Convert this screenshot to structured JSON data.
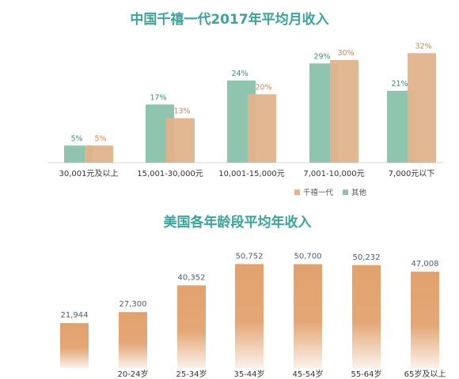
{
  "colors": {
    "millennial": "#e0b48c",
    "other": "#8fc4ae",
    "title": "#3aa59a",
    "axis_text": "#333333",
    "us_bar": "#e2a26e",
    "us_label": "#4a6070"
  },
  "chart_data": [
    {
      "type": "bar",
      "title": "中国千禧一代2017年平均月收入",
      "categories": [
        "30,001元及以上",
        "15,001-30,000元",
        "10,001-15,000元",
        "7,001-10,000元",
        "7,000元以下"
      ],
      "series": [
        {
          "name": "千禧一代",
          "values": [
            5,
            13,
            20,
            30,
            32
          ],
          "labels": [
            "5%",
            "13%",
            "20%",
            "30%",
            "32%"
          ]
        },
        {
          "name": "其他",
          "values": [
            5,
            17,
            24,
            29,
            21
          ],
          "labels": [
            "5%",
            "17%",
            "24%",
            "29%",
            "21%"
          ]
        }
      ],
      "ylim": [
        0,
        36
      ],
      "legend": "bottom-right",
      "grid": false
    },
    {
      "type": "bar",
      "title": "美国各年龄段平均年收入",
      "categories": [
        "",
        "20-24岁",
        "25-34岁",
        "35-44岁",
        "45-54岁",
        "55-64岁",
        "65岁及以上"
      ],
      "values": [
        21944,
        27300,
        40352,
        50752,
        50700,
        50232,
        47008
      ],
      "labels": [
        "21,944",
        "27,300",
        "40,352",
        "50,752",
        "50,700",
        "50,232",
        "47,008"
      ],
      "ylim": [
        0,
        54000
      ],
      "grid": false
    }
  ]
}
